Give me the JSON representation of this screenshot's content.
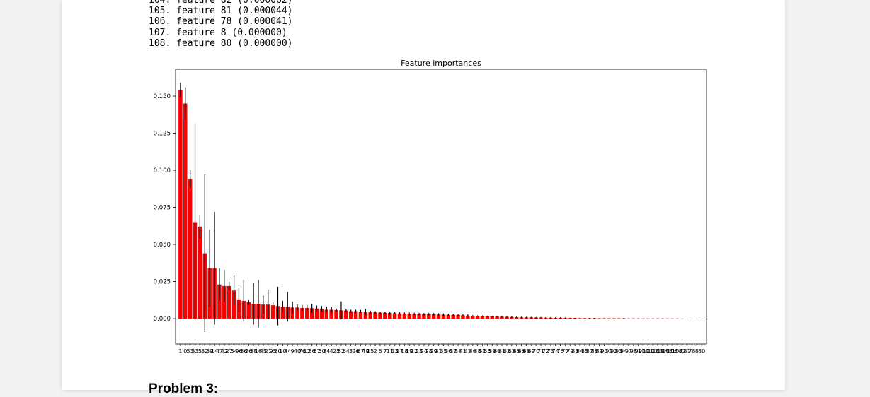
{
  "output": {
    "lines": [
      "104. feature 82 (0.000062)",
      "105. feature 81 (0.000044)",
      "106. feature 78 (0.000041)",
      "107. feature 8 (0.000000)",
      "108. feature 80 (0.000000)"
    ]
  },
  "chart_data": {
    "type": "bar",
    "title": "Feature importances",
    "categories": [
      "1",
      "0",
      "53",
      "33",
      "5",
      "32",
      "39",
      "14",
      "47",
      "42",
      "27",
      "54",
      "96",
      "56",
      "26",
      "58",
      "16",
      "45",
      "21",
      "95",
      "30",
      "10",
      "44",
      "9",
      "40",
      "76",
      "12",
      "86",
      "57",
      "50",
      "34",
      "4",
      "25",
      "52",
      "64",
      "3",
      "20",
      "67",
      "49",
      "15",
      "2",
      "6",
      "7",
      "11",
      "13",
      "17",
      "18",
      "19",
      "22",
      "23",
      "24",
      "28",
      "29",
      "31",
      "35",
      "36",
      "37",
      "38",
      "41",
      "43",
      "46",
      "48",
      "51",
      "55",
      "59",
      "60",
      "61",
      "62",
      "63",
      "65",
      "66",
      "68",
      "69",
      "70",
      "71",
      "72",
      "73",
      "74",
      "75",
      "77",
      "79",
      "83",
      "84",
      "85",
      "87",
      "88",
      "89",
      "90",
      "91",
      "92",
      "93",
      "94",
      "97",
      "98",
      "99",
      "100",
      "101",
      "102",
      "103",
      "104",
      "105",
      "106",
      "107",
      "82",
      "81",
      "78",
      "8",
      "80"
    ],
    "values": [
      0.154,
      0.145,
      0.094,
      0.065,
      0.062,
      0.044,
      0.034,
      0.034,
      0.023,
      0.022,
      0.022,
      0.019,
      0.013,
      0.012,
      0.011,
      0.01,
      0.01,
      0.0095,
      0.0095,
      0.009,
      0.0085,
      0.008,
      0.008,
      0.0075,
      0.0075,
      0.0072,
      0.0072,
      0.007,
      0.0068,
      0.0065,
      0.006,
      0.006,
      0.0058,
      0.0056,
      0.0055,
      0.005,
      0.005,
      0.0048,
      0.0046,
      0.0044,
      0.0042,
      0.004,
      0.004,
      0.0038,
      0.0037,
      0.0035,
      0.0034,
      0.0033,
      0.0032,
      0.0031,
      0.003,
      0.003,
      0.0029,
      0.0028,
      0.0027,
      0.0026,
      0.0025,
      0.0024,
      0.0022,
      0.002,
      0.0019,
      0.0018,
      0.0017,
      0.0016,
      0.0015,
      0.0014,
      0.0013,
      0.0012,
      0.0011,
      0.001,
      0.0009,
      0.0008,
      0.0008,
      0.0007,
      0.0007,
      0.0006,
      0.0006,
      0.0005,
      0.0005,
      0.0004,
      0.0004,
      0.0004,
      0.0003,
      0.0003,
      0.0003,
      0.0003,
      0.0002,
      0.0002,
      0.0002,
      0.0002,
      0.0002,
      0.0002,
      0.0001,
      0.0001,
      0.0001,
      0.0001,
      0.0001,
      0.0001,
      0.0001,
      0.0001,
      0.0001,
      0.0001,
      0.0001,
      6.2e-05,
      4.4e-05,
      4.1e-05,
      0,
      0
    ],
    "errors": [
      0.005,
      0.011,
      0.006,
      0.066,
      0.008,
      0.053,
      0.026,
      0.038,
      0.011,
      0.011,
      0.003,
      0.01,
      0.008,
      0.014,
      0.002,
      0.014,
      0.016,
      0.006,
      0.01,
      0.002,
      0.013,
      0.004,
      0.01,
      0.004,
      0.002,
      0.002,
      0.002,
      0.003,
      0.002,
      0.002,
      0.002,
      0.002,
      0.001,
      0.006,
      0.001,
      0.001,
      0.001,
      0.001,
      0.002,
      0.001,
      0.0008,
      0.0008,
      0.0008,
      0.0008,
      0.0008,
      0.0008,
      0.0008,
      0.0008,
      0.0008,
      0.0008,
      0.0008,
      0.0008,
      0.0008,
      0.0008,
      0.0008,
      0.0008,
      0.0008,
      0.0008,
      0.0008,
      0.0008,
      0.0004,
      0.0004,
      0.0004,
      0.0004,
      0.0004,
      0.0004,
      0.0004,
      0.0004,
      0.0004,
      0.0004,
      0.0004,
      0.0004,
      0.0004,
      0.0004,
      0.0004,
      0.0004,
      0.0004,
      0.0004,
      0.0004,
      0.0004,
      0.0002,
      0.0002,
      0.0002,
      0.0002,
      0.0002,
      0.0002,
      0.0002,
      0.0002,
      0.0002,
      0.0002,
      0.0002,
      0.0002,
      0.0002,
      0.0002,
      0.0002,
      0.0002,
      0.0002,
      0.0002,
      0.0002,
      0.0002,
      0.0001,
      0.0001,
      0.0001,
      5e-05,
      4e-05,
      4e-05,
      0,
      0
    ],
    "color": "#ff0000",
    "error_color": "#000000",
    "ylim": [
      -0.0171,
      0.1681
    ],
    "yticks": [
      {
        "value": 0,
        "label": "0.000"
      },
      {
        "value": 0.025,
        "label": "0.025"
      },
      {
        "value": 0.05,
        "label": "0.050"
      },
      {
        "value": 0.075,
        "label": "0.075"
      },
      {
        "value": 0.1,
        "label": "0.100"
      },
      {
        "value": 0.125,
        "label": "0.125"
      },
      {
        "value": 0.15,
        "label": "0.150"
      }
    ]
  },
  "heading": "Problem 3:"
}
